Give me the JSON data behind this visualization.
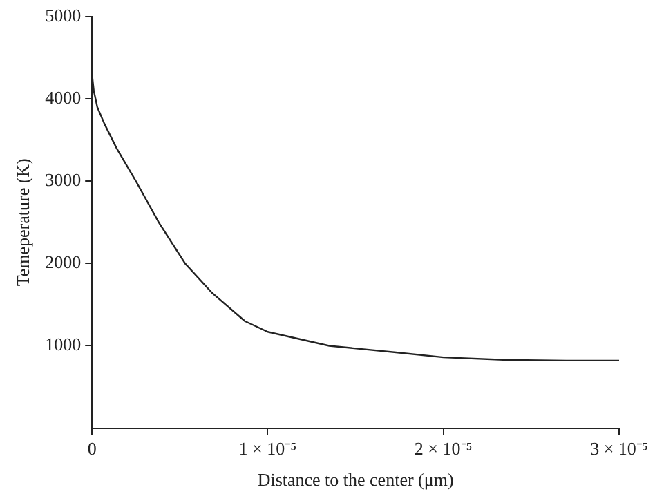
{
  "chart_data": {
    "type": "line",
    "xlabel": "Distance to the center (μm)",
    "ylabel": "Temeperature (K)",
    "x": [
      0,
      1e-07,
      3e-07,
      7e-07,
      1.4e-06,
      2.5e-06,
      3.8e-06,
      5.3e-06,
      6.8e-06,
      8.7e-06,
      1e-05,
      1.35e-05,
      1.73e-05,
      2e-05,
      2.34e-05,
      2.7e-05,
      3e-05
    ],
    "series": [
      {
        "color": "#222222",
        "values": [
          4300,
          4100,
          3900,
          3700,
          3400,
          3000,
          2500,
          2000,
          1650,
          1300,
          1170,
          1000,
          920,
          860,
          830,
          820,
          820
        ]
      }
    ],
    "xlim": [
      0,
      3e-05
    ],
    "xticks": [
      0,
      {
        "value": 1e-05,
        "label": "1 × 10⁻⁵"
      },
      {
        "value": 2e-05,
        "label": "2 × 10⁻⁵"
      },
      {
        "value": 3e-05,
        "label": "3 × 10⁻⁵"
      }
    ],
    "ylim": [
      0,
      5000
    ],
    "yticks": [
      1000,
      2000,
      3000,
      4000,
      5000
    ],
    "grid": false,
    "legend": false,
    "marker": "none",
    "line_style": "solid"
  }
}
